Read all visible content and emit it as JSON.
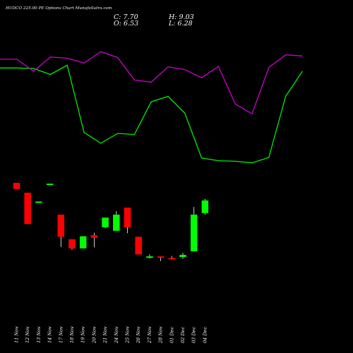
{
  "header": {
    "title": "HUDCO 225.00 PE Options Chart MunafaSutra.com",
    "close": "C: 7.70",
    "high": "H: 9.03",
    "open": "O: 6.53",
    "low": "L: 6.28"
  },
  "colors": {
    "background": "#000000",
    "up": "#00ff00",
    "down": "#ff0000",
    "line_green": "#00ee00",
    "line_magenta": "#cc00cc",
    "text": "#ffffff"
  },
  "chart_data": {
    "type": "candlestick",
    "dates": [
      "11 Nov",
      "12 Nov",
      "13 Nov",
      "14 Nov",
      "17 Nov",
      "18 Nov",
      "19 Nov",
      "20 Nov",
      "21 Nov",
      "24 Nov",
      "25 Nov",
      "26 Nov",
      "27 Nov",
      "28 Nov",
      "01 Dec",
      "02 Dec",
      "03 Dec",
      "04 Dec"
    ],
    "y_unit": "relative price",
    "ylim": [
      0,
      100
    ],
    "candles": [
      {
        "open": 100.0,
        "high": 100.0,
        "low": 94.6,
        "close": 94.6
      },
      {
        "open": 91.4,
        "high": 91.4,
        "low": 64.0,
        "close": 64.0
      },
      {
        "open": 83.3,
        "high": 83.7,
        "low": 83.3,
        "close": 83.7
      },
      {
        "open": 99.3,
        "high": 99.3,
        "low": 98.8,
        "close": 99.3
      },
      {
        "open": 72.2,
        "high": 72.2,
        "low": 43.8,
        "close": 52.9
      },
      {
        "open": 50.7,
        "high": 50.7,
        "low": 41.4,
        "close": 42.7
      },
      {
        "open": 42.7,
        "high": 53.3,
        "low": 42.7,
        "close": 53.3
      },
      {
        "open": 54.2,
        "high": 56.4,
        "low": 43.6,
        "close": 52.0
      },
      {
        "open": 61.2,
        "high": 69.6,
        "low": 60.4,
        "close": 69.6
      },
      {
        "open": 58.1,
        "high": 75.3,
        "low": 58.1,
        "close": 72.2
      },
      {
        "open": 78.4,
        "high": 78.4,
        "low": 56.0,
        "close": 61.2
      },
      {
        "open": 52.9,
        "high": 52.9,
        "low": 37.4,
        "close": 37.4
      },
      {
        "open": 34.8,
        "high": 37.4,
        "low": 33.9,
        "close": 35.7
      },
      {
        "open": 35.7,
        "high": 35.7,
        "low": 31.7,
        "close": 34.8
      },
      {
        "open": 34.4,
        "high": 36.1,
        "low": 33.0,
        "close": 33.5
      },
      {
        "open": 35.2,
        "high": 38.8,
        "low": 33.5,
        "close": 37.0
      },
      {
        "open": 40.1,
        "high": 78.9,
        "low": 40.1,
        "close": 72.2
      },
      {
        "open": 73.6,
        "high": 85.9,
        "low": 72.2,
        "close": 84.6
      }
    ],
    "green_line": [
      83.0,
      83.0,
      82.5,
      77.0,
      85.5,
      24.0,
      14.0,
      23.0,
      22.0,
      52.0,
      57.0,
      41.5,
      0.5,
      -2.0,
      -2.5,
      -4.0,
      1.0,
      57.0,
      80.0
    ],
    "magenta_line": [
      91.0,
      91.0,
      80.0,
      93.0,
      92.0,
      87.5,
      98.0,
      92.5,
      72.0,
      70.0,
      84.0,
      81.5,
      74.0,
      84.5,
      50.0,
      41.0,
      83.5,
      95.0,
      94.0
    ]
  }
}
